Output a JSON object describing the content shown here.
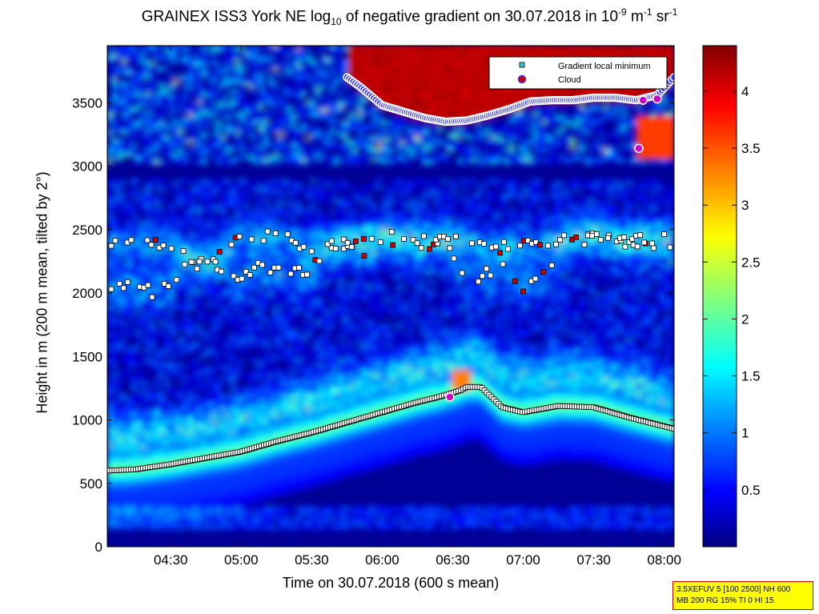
{
  "chart_data": {
    "type": "heatmap",
    "title": {
      "part1": "GRAINEX ISS3 York NE log",
      "sub": "10",
      "part2": " of negative gradient on 30.07.2018 in 10",
      "sup1": "-9",
      "part3": " m",
      "sup2": "-1",
      "part4": " sr",
      "sup3": "-1"
    },
    "xlabel": "Time on 30.07.2018 (600 s mean)",
    "ylabel": "Height in m (200 m mean, tilted by 2°)",
    "x_range_hours": [
      4.05,
      8.07
    ],
    "ylim": [
      0,
      3950
    ],
    "x_ticks": [
      {
        "value": 4.5,
        "label": "04:30"
      },
      {
        "value": 5.0,
        "label": "05:00"
      },
      {
        "value": 5.5,
        "label": "05:30"
      },
      {
        "value": 6.0,
        "label": "06:00"
      },
      {
        "value": 6.5,
        "label": "06:30"
      },
      {
        "value": 7.0,
        "label": "07:00"
      },
      {
        "value": 7.5,
        "label": "07:30"
      },
      {
        "value": 8.0,
        "label": "08:00"
      }
    ],
    "y_ticks": [
      0,
      500,
      1000,
      1500,
      2000,
      2500,
      3000,
      3500
    ],
    "colorbar": {
      "colormap": "jet",
      "range": [
        0,
        4.4
      ],
      "ticks": [
        0.5,
        1,
        1.5,
        2,
        2.5,
        3,
        3.5,
        4
      ]
    },
    "legend": {
      "placement": "top-right",
      "entries": [
        {
          "label": "Gradient local minimum",
          "marker": "square",
          "color": "#33cccc"
        },
        {
          "label": "Cloud",
          "marker": "circle",
          "color": "#cc0000"
        }
      ]
    },
    "series": [
      {
        "name": "Gradient local minimum",
        "layer": "boundary layer top",
        "x": [
          4.05,
          4.25,
          4.5,
          4.75,
          5.0,
          5.25,
          5.5,
          5.75,
          6.0,
          6.25,
          6.4,
          6.55,
          6.6,
          6.7,
          6.85,
          7.0,
          7.25,
          7.5,
          7.75,
          8.07
        ],
        "y": [
          600,
          610,
          650,
          700,
          750,
          830,
          900,
          980,
          1060,
          1140,
          1180,
          1230,
          1260,
          1260,
          1100,
          1060,
          1110,
          1100,
          1020,
          930
        ]
      },
      {
        "name": "Gradient local minimum",
        "layer": "residual layer",
        "x": [
          4.05,
          4.15,
          4.3,
          4.4,
          4.5,
          4.6,
          4.75,
          4.9,
          5.0,
          5.1,
          5.25,
          5.4,
          5.5,
          5.6,
          5.75,
          5.9,
          6.0,
          6.15,
          6.3,
          6.45,
          6.6,
          6.75,
          6.9,
          7.0,
          7.15,
          7.3,
          7.5,
          7.65,
          7.8,
          7.95,
          8.07
        ],
        "y": [
          2030,
          2050,
          2040,
          1990,
          2100,
          2200,
          2250,
          2180,
          2120,
          2220,
          2180,
          2150,
          2200,
          2300,
          2380,
          2320,
          2430,
          2400,
          2350,
          2400,
          2100,
          2150,
          2200,
          2050,
          2130,
          2380,
          2440,
          2400,
          2380,
          2400,
          2300
        ]
      },
      {
        "name": "Gradient local minimum",
        "layer": "upper layer",
        "x": [
          4.05,
          4.15,
          4.5,
          4.75,
          5.0,
          5.25,
          5.5,
          5.75,
          6.0,
          6.25,
          6.5,
          6.75,
          7.0,
          7.25,
          7.5,
          7.75,
          8.0
        ],
        "y": [
          2430,
          2380,
          2380,
          2200,
          2460,
          2450,
          2360,
          2400,
          2460,
          2400,
          2440,
          2350,
          2370,
          2420,
          2480,
          2420,
          2430
        ]
      },
      {
        "name": "Gradient local minimum",
        "layer": "cloud base",
        "x": [
          5.75,
          5.85,
          6.0,
          6.15,
          6.3,
          6.45,
          6.6,
          6.75,
          6.9,
          7.05,
          7.2,
          7.35,
          7.5,
          7.65,
          7.8,
          7.95,
          8.07
        ],
        "y": [
          3700,
          3620,
          3480,
          3430,
          3380,
          3350,
          3360,
          3400,
          3450,
          3510,
          3520,
          3520,
          3540,
          3540,
          3520,
          3560,
          3700
        ]
      },
      {
        "name": "Cloud",
        "x": [
          6.48,
          7.82,
          7.85,
          7.95
        ],
        "y": [
          1180,
          3140,
          3520,
          3530
        ]
      }
    ]
  },
  "info_box": {
    "line1": "3.5XEFUV 5 [100 2500] NH 600",
    "line2": "MB 200 RG 15% TI 0 HI 15"
  }
}
